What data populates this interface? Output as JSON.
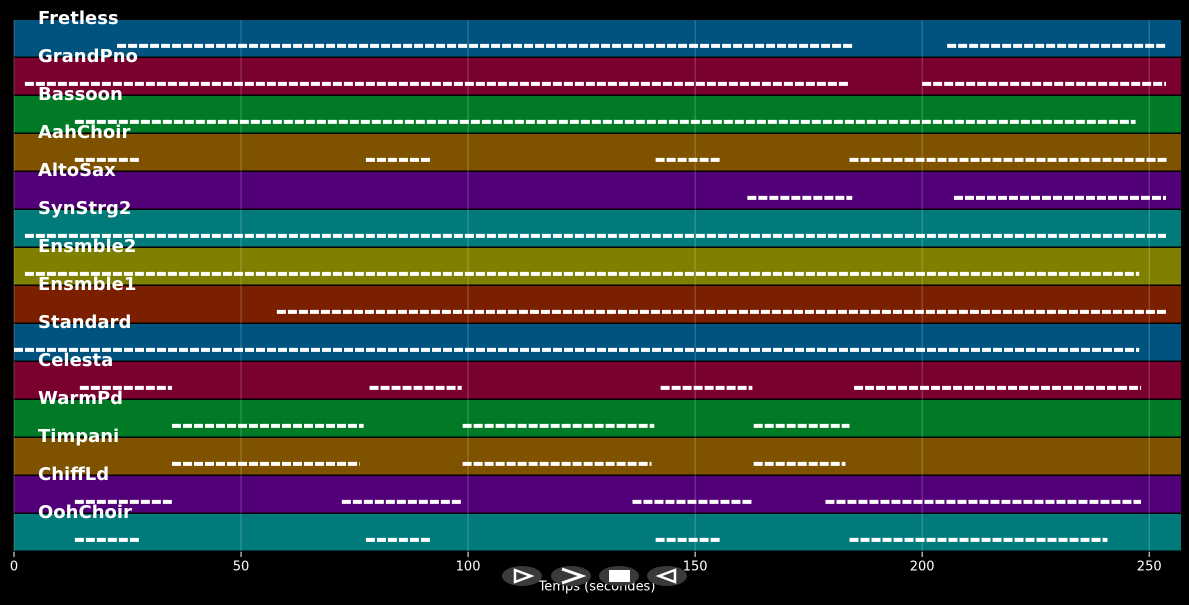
{
  "chart_data": {
    "type": "pianoroll",
    "x_label": "Temps (secondes)",
    "xlim": [
      0,
      257
    ],
    "xticks": [
      0,
      50,
      100,
      150,
      200,
      250
    ],
    "grid": true,
    "tracks": [
      {
        "name": "Fretless",
        "color": "#00527f",
        "segments": [
          [
            22.7,
            184.6
          ],
          [
            205.5,
            253.7
          ]
        ]
      },
      {
        "name": "GrandPno",
        "color": "#7a0030",
        "segments": [
          [
            2.4,
            184.0
          ],
          [
            200.0,
            253.7
          ]
        ]
      },
      {
        "name": "Bassoon",
        "color": "#007a24",
        "segments": [
          [
            13.4,
            247.0
          ]
        ]
      },
      {
        "name": "AahChoir",
        "color": "#7f5200",
        "segments": [
          [
            13.4,
            27.7
          ],
          [
            77.5,
            91.8
          ],
          [
            141.3,
            155.8
          ],
          [
            184.0,
            254.0
          ]
        ]
      },
      {
        "name": "AltoSax",
        "color": "#520078",
        "segments": [
          [
            161.5,
            184.6
          ],
          [
            207.0,
            253.7
          ]
        ]
      },
      {
        "name": "SynStrg2",
        "color": "#007a7a",
        "segments": [
          [
            2.4,
            253.7
          ]
        ]
      },
      {
        "name": "Ensmble2",
        "color": "#7f7f00",
        "segments": [
          [
            2.4,
            247.8
          ]
        ]
      },
      {
        "name": "Ensmble1",
        "color": "#7a2000",
        "segments": [
          [
            57.9,
            253.7
          ]
        ]
      },
      {
        "name": "Standard",
        "color": "#00527f",
        "segments": [
          [
            0.0,
            247.8
          ]
        ]
      },
      {
        "name": "Celesta",
        "color": "#7a0030",
        "segments": [
          [
            14.5,
            34.8
          ],
          [
            78.3,
            98.6
          ],
          [
            142.4,
            162.6
          ],
          [
            185.0,
            248.2
          ]
        ]
      },
      {
        "name": "WarmPd",
        "color": "#007a24",
        "segments": [
          [
            34.8,
            77.0
          ],
          [
            98.8,
            141.0
          ],
          [
            162.9,
            184.0
          ]
        ]
      },
      {
        "name": "Timpani",
        "color": "#7f5200",
        "segments": [
          [
            34.8,
            76.1
          ],
          [
            98.8,
            140.4
          ],
          [
            162.9,
            183.1
          ]
        ]
      },
      {
        "name": "ChiffLd",
        "color": "#520078",
        "segments": [
          [
            13.4,
            34.8
          ],
          [
            72.2,
            98.6
          ],
          [
            136.2,
            162.6
          ],
          [
            178.7,
            248.2
          ]
        ]
      },
      {
        "name": "OohChoir",
        "color": "#007a7a",
        "segments": [
          [
            13.4,
            27.7
          ],
          [
            77.5,
            91.8
          ],
          [
            141.3,
            155.8
          ],
          [
            184.0,
            240.8
          ]
        ]
      }
    ]
  }
}
